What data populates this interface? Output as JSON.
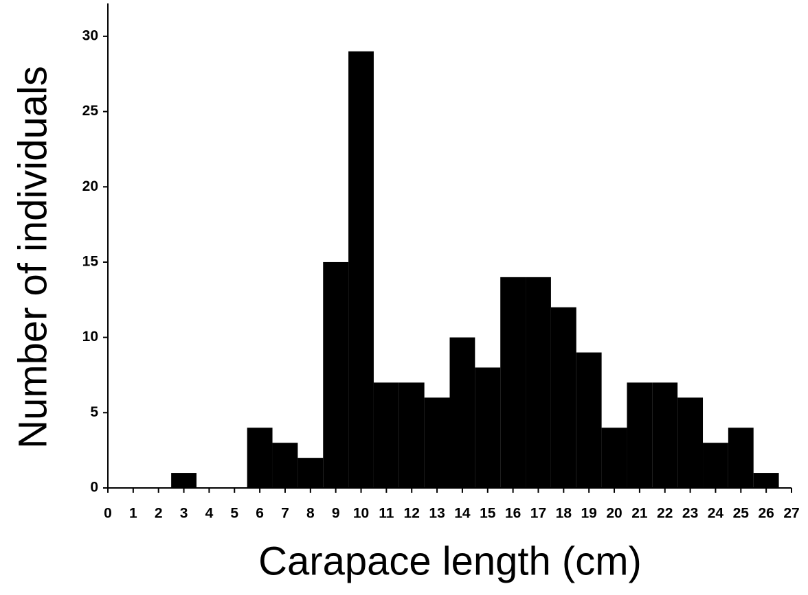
{
  "chart_data": {
    "type": "histogram",
    "x_label": "Carapace length (cm)",
    "y_label": "Number of individuals",
    "bins": [
      2.5,
      3.5,
      4.5,
      5.5,
      6.5,
      7.5,
      8.5,
      9.5,
      10.5,
      11.5,
      12.5,
      13.5,
      14.5,
      15.5,
      16.5,
      17.5,
      18.5,
      19.5,
      20.5,
      21.5,
      22.5,
      23.5,
      24.5,
      25.5,
      26.5
    ],
    "values": [
      1,
      0,
      0,
      4,
      3,
      2,
      15,
      29,
      7,
      7,
      6,
      10,
      8,
      14,
      14,
      12,
      9,
      4,
      7,
      7,
      6,
      3,
      4,
      1
    ],
    "color": "#000000",
    "xlim": [
      0,
      27
    ],
    "xticks": [
      0,
      1,
      2,
      3,
      4,
      5,
      6,
      7,
      8,
      9,
      10,
      11,
      12,
      13,
      14,
      15,
      16,
      17,
      18,
      19,
      20,
      21,
      22,
      23,
      24,
      25,
      26,
      27
    ],
    "ylim": [
      0,
      32
    ],
    "yticks": [
      0,
      5,
      10,
      15,
      20,
      25,
      30
    ],
    "grid": false
  }
}
